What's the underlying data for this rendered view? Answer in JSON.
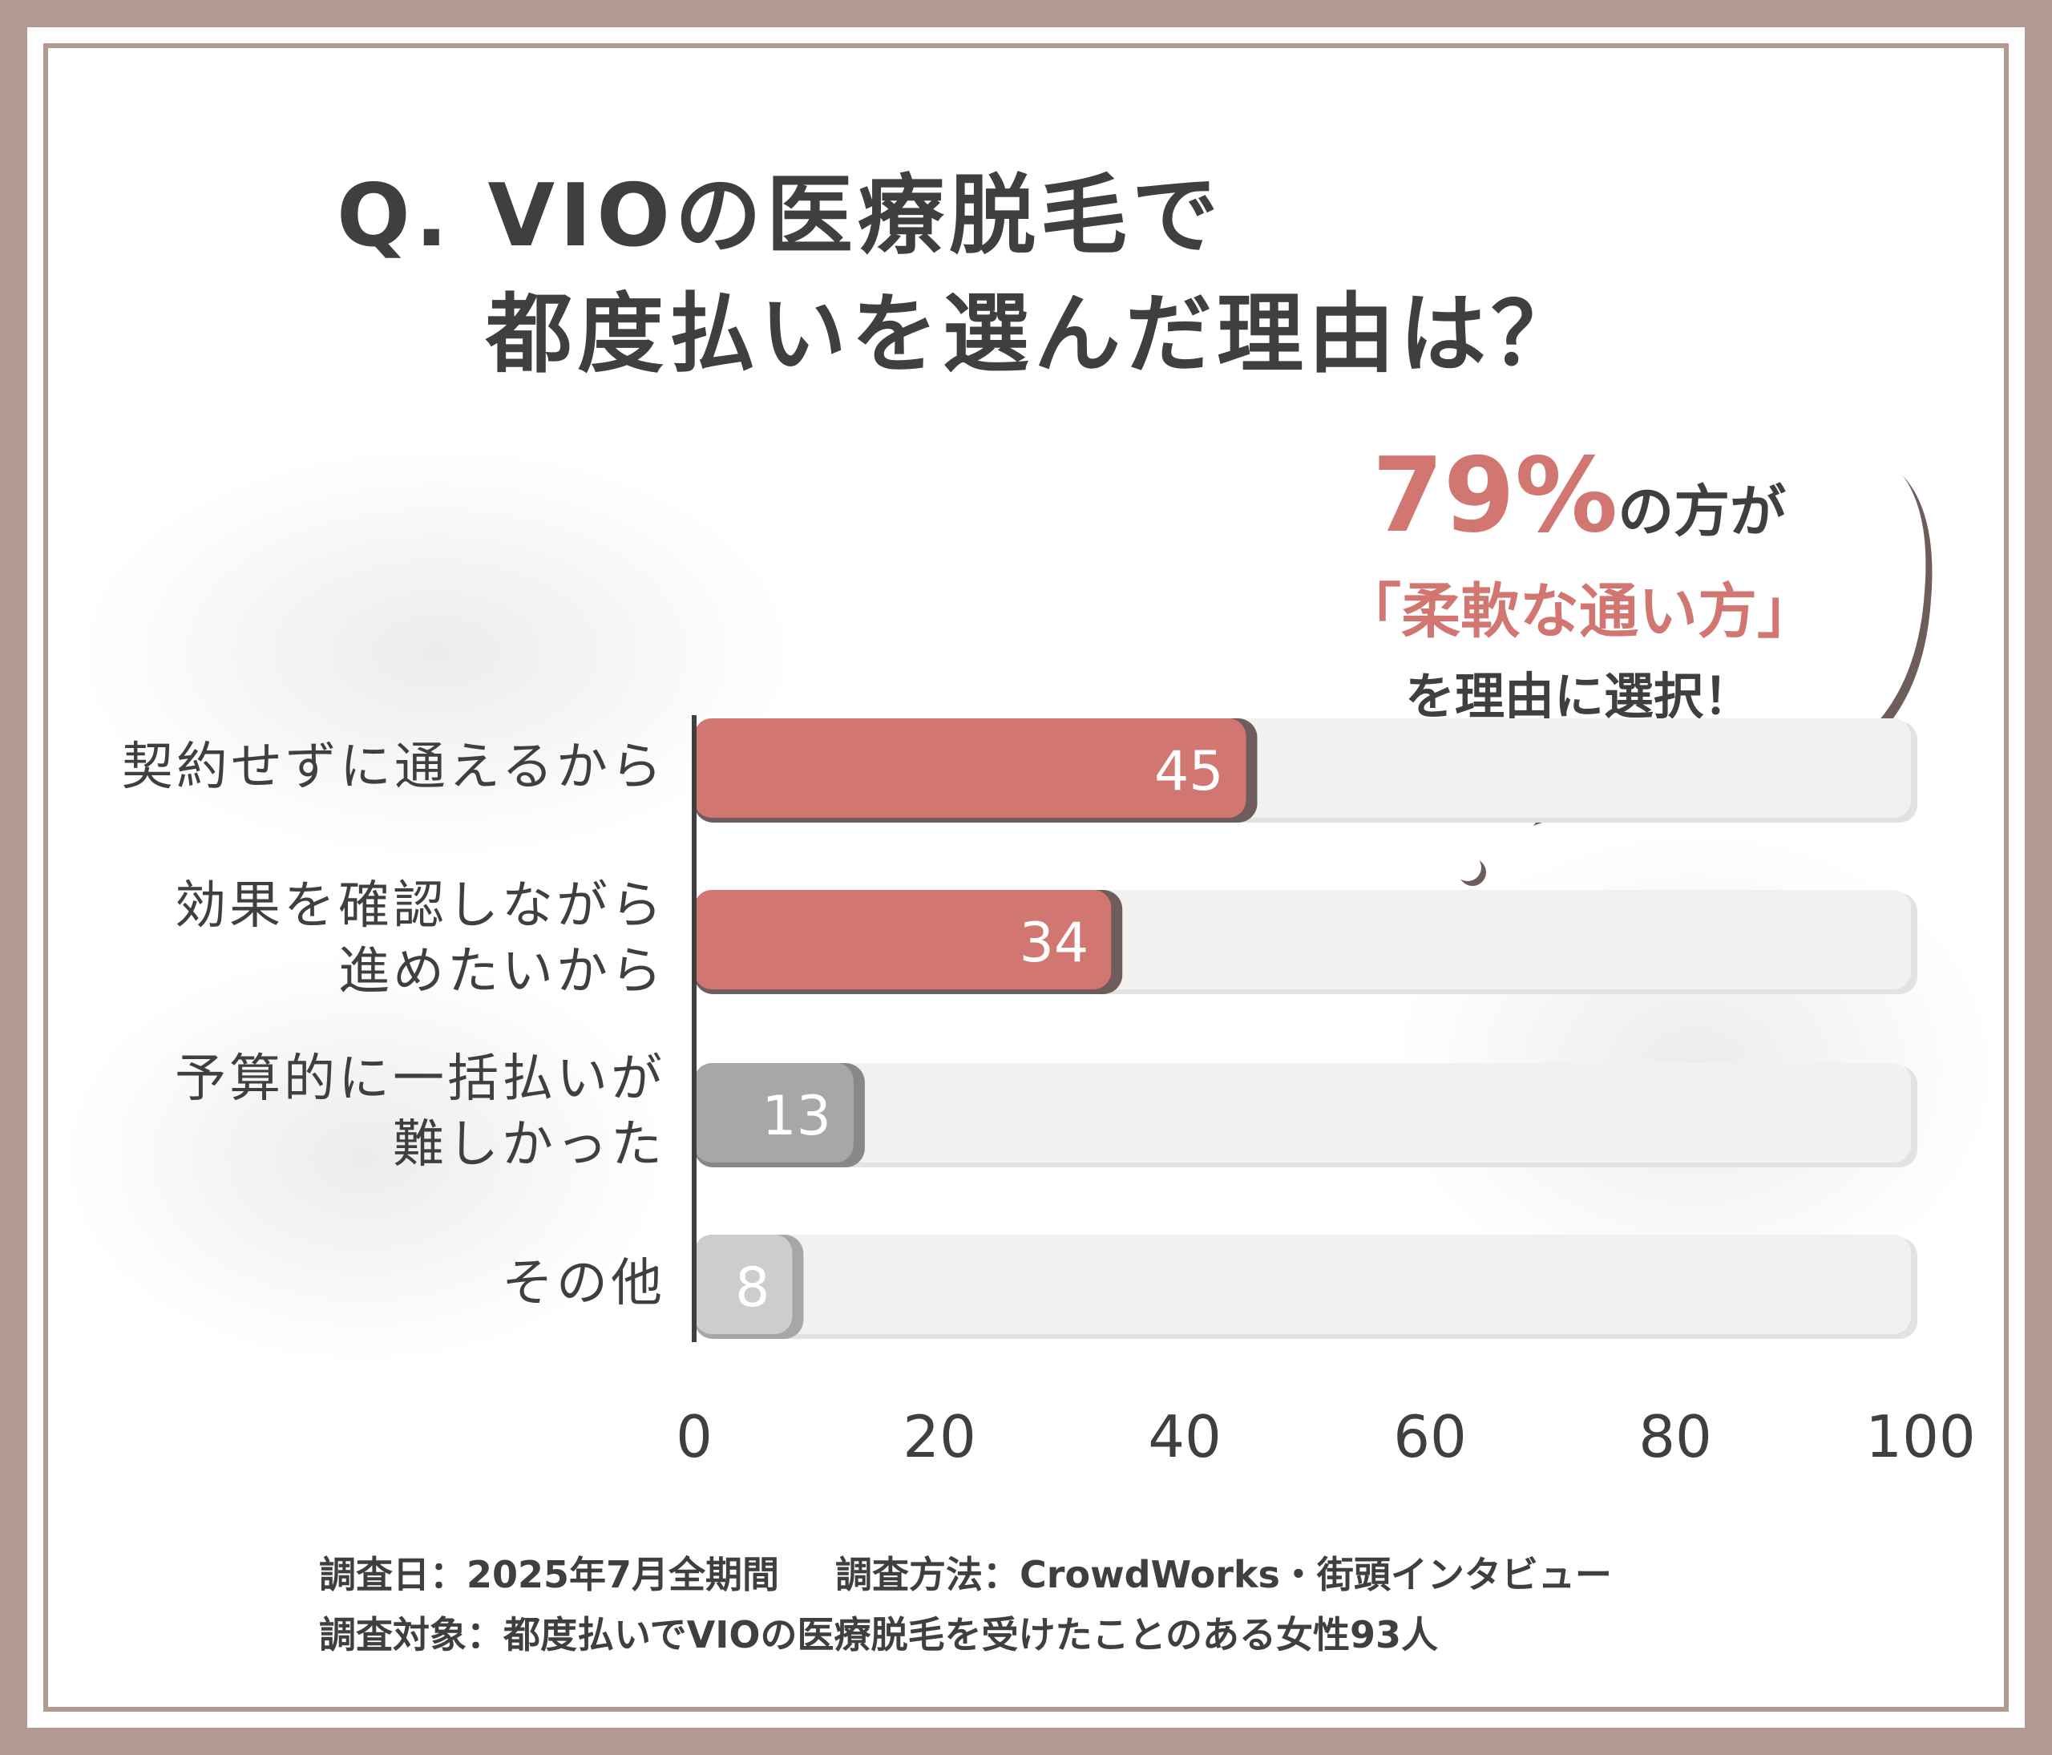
{
  "title": {
    "line1": "Q. VIOの医療脱毛で",
    "line2": "都度払いを選んだ理由は？"
  },
  "callout": {
    "percent": "79%",
    "percent_suffix": "の方が",
    "highlight": "「柔軟な通い方」",
    "line3": "を理由に選択！"
  },
  "chart_data": {
    "type": "bar",
    "orientation": "horizontal",
    "categories": [
      "契約せずに通えるから",
      "効果を確認しながら進めたいから",
      "予算的に一括払いが難しかった",
      "その他"
    ],
    "category_lines": [
      [
        "契約せずに通えるから"
      ],
      [
        "効果を確認しながら",
        "進めたいから"
      ],
      [
        "予算的に一括払いが",
        "難しかった"
      ],
      [
        "その他"
      ]
    ],
    "values": [
      45,
      34,
      13,
      8
    ],
    "value_labels": [
      "45",
      "34",
      "13",
      "8"
    ],
    "xlim": [
      0,
      100
    ],
    "xticks": [
      "0",
      "20",
      "40",
      "60",
      "80",
      "100"
    ],
    "bar_colors": [
      "#d27672",
      "#d27672",
      "#a9a7a5",
      "#cfcdcb"
    ],
    "bar_shadow_colors": [
      "#6e5d5b",
      "#6e5d5b",
      "#8a8886",
      "#a9a7a5"
    ],
    "track_color": "#f3f1f0",
    "grid": false
  },
  "footer": {
    "date": "調査日：2025年7月全期間",
    "method": "調査方法：CrowdWorks・街頭インタビュー",
    "target": "調査対象：都度払いでVIOの医療脱毛を受けたことのある女性93人"
  }
}
